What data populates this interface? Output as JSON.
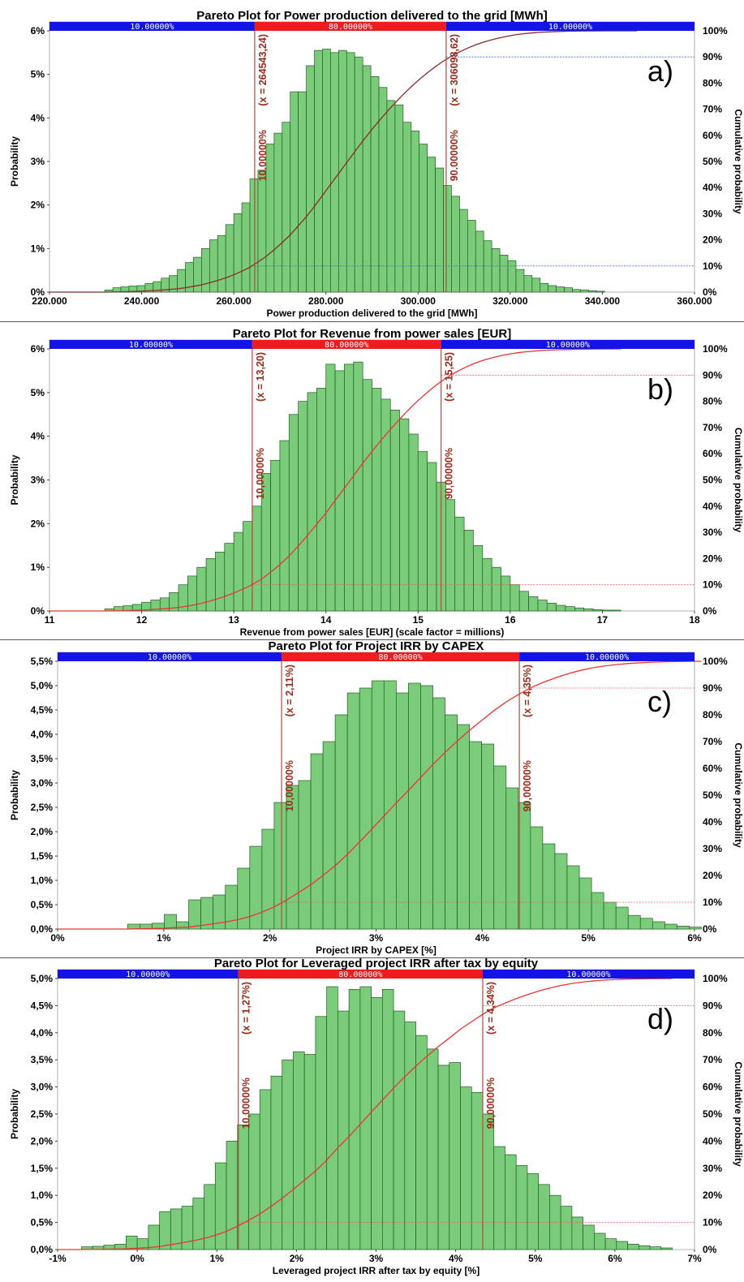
{
  "chart_data": [
    {
      "type": "bar",
      "panel_label": "a)",
      "title": "Pareto Plot for Power production delivered to the grid [MWh]",
      "xlabel": "Power production delivered to the grid [MWh]",
      "ylabel": "Probability",
      "y2label": "Cumulative probability",
      "x_ticks": [
        "220.000",
        "240.000",
        "260.000",
        "280.000",
        "300.000",
        "320.000",
        "340.000",
        "360.000"
      ],
      "y_ticks": [
        "0%",
        "1%",
        "2%",
        "3%",
        "4%",
        "5%",
        "6%"
      ],
      "y2_ticks": [
        "0%",
        "10%",
        "20%",
        "30%",
        "40%",
        "50%",
        "60%",
        "70%",
        "80%",
        "90%",
        "100%"
      ],
      "xlim": [
        220000,
        360000
      ],
      "ylim": [
        0,
        6
      ],
      "bin_start": 232000,
      "bin_width": 1750,
      "values": [
        0.05,
        0.1,
        0.12,
        0.14,
        0.15,
        0.2,
        0.24,
        0.32,
        0.38,
        0.52,
        0.68,
        0.8,
        1.0,
        1.2,
        1.3,
        1.55,
        1.8,
        2.05,
        2.6,
        2.8,
        3.4,
        3.65,
        3.9,
        4.6,
        4.6,
        5.2,
        5.55,
        5.58,
        5.5,
        5.55,
        5.5,
        5.4,
        5.2,
        4.95,
        4.7,
        4.4,
        4.3,
        3.9,
        3.7,
        3.4,
        3.1,
        2.85,
        2.45,
        2.2,
        1.9,
        1.65,
        1.4,
        1.18,
        1.0,
        0.85,
        0.72,
        0.52,
        0.38,
        0.32,
        0.2,
        0.15,
        0.12,
        0.1,
        0.06,
        0.05,
        0.03,
        0.02
      ],
      "bar_color": "#7acc7a",
      "cdf_color": "#8b2a2a",
      "cdf_end": 347500,
      "band_labels": [
        "10.00000%",
        "80.00000%",
        "10.00000%"
      ],
      "band_colors": [
        "#1414e6",
        "#ee1c1c",
        "#1414e6"
      ],
      "percentile_lines": [
        {
          "x": 264543.24,
          "percent_label": "10.00000%",
          "value_label": "(x = 264543,24)"
        },
        {
          "x": 306098.62,
          "percent_label": "90.00000%",
          "value_label": "(x = 306098,62)"
        }
      ],
      "line_color": "#b34a3a",
      "guide_color": "#3b6fd8",
      "guides_at_cdf": [
        0.1,
        0.9
      ]
    },
    {
      "type": "bar",
      "panel_label": "b)",
      "title": "Pareto Plot for Revenue from power sales [EUR]",
      "xlabel": "Revenue from power sales [EUR] (scale factor = millions)",
      "ylabel": "Probability",
      "y2label": "Cumulative probability",
      "x_ticks": [
        "11",
        "12",
        "13",
        "14",
        "15",
        "16",
        "17",
        "18"
      ],
      "y_ticks": [
        "0%",
        "1%",
        "2%",
        "3%",
        "4%",
        "5%",
        "6%"
      ],
      "y2_ticks": [
        "0%",
        "10%",
        "20%",
        "30%",
        "40%",
        "50%",
        "60%",
        "70%",
        "80%",
        "90%",
        "100%"
      ],
      "xlim": [
        11,
        18
      ],
      "ylim": [
        0,
        6
      ],
      "bin_start": 11.6,
      "bin_width": 0.1,
      "values": [
        0.05,
        0.1,
        0.12,
        0.15,
        0.2,
        0.25,
        0.3,
        0.42,
        0.6,
        0.8,
        1.0,
        1.2,
        1.35,
        1.55,
        1.8,
        2.05,
        2.4,
        3.15,
        3.45,
        3.9,
        4.5,
        4.8,
        5.0,
        5.1,
        5.65,
        5.5,
        5.65,
        5.7,
        5.3,
        5.1,
        4.85,
        4.6,
        4.4,
        4.05,
        3.65,
        3.4,
        2.95,
        2.55,
        2.15,
        1.85,
        1.5,
        1.2,
        1.0,
        0.8,
        0.6,
        0.45,
        0.33,
        0.25,
        0.18,
        0.13,
        0.1,
        0.07,
        0.05,
        0.03,
        0.02,
        0.02
      ],
      "bar_color": "#7acc7a",
      "cdf_color": "#ee3333",
      "cdf_end": 17.1,
      "band_labels": [
        "10.00000%",
        "80.00000%",
        "10.00000%"
      ],
      "band_colors": [
        "#1414e6",
        "#ee1c1c",
        "#1414e6"
      ],
      "percentile_lines": [
        {
          "x": 13.2,
          "percent_label": "10,00000%",
          "value_label": "(x = 13,20)"
        },
        {
          "x": 15.25,
          "percent_label": "90,00000%",
          "value_label": "(x = 15,25)"
        }
      ],
      "line_color": "#b34a3a",
      "guide_color": "#e06060",
      "guides_at_cdf": [
        0.1,
        0.9
      ]
    },
    {
      "type": "bar",
      "panel_label": "c)",
      "title": "Pareto Plot for Project IRR by CAPEX",
      "xlabel": "Project IRR by CAPEX [%]",
      "ylabel": "Probability",
      "y2label": "Cumulative probability",
      "x_ticks": [
        "0%",
        "1%",
        "2%",
        "3%",
        "4%",
        "5%",
        "6%"
      ],
      "y_ticks": [
        "0,0%",
        "0,5%",
        "1,0%",
        "1,5%",
        "2,0%",
        "2,5%",
        "3,0%",
        "3,5%",
        "4,0%",
        "4,5%",
        "5,0%",
        "5,5%"
      ],
      "y2_ticks": [
        "0%",
        "10%",
        "20%",
        "30%",
        "40%",
        "50%",
        "60%",
        "70%",
        "80%",
        "90%",
        "100%"
      ],
      "xlim": [
        0,
        6
      ],
      "ylim": [
        0,
        5.5
      ],
      "bin_start": 0.66,
      "bin_width": 0.115,
      "values": [
        0.1,
        0.1,
        0.12,
        0.3,
        0.15,
        0.6,
        0.65,
        0.7,
        0.9,
        1.25,
        1.7,
        2.05,
        2.6,
        2.95,
        3.05,
        3.6,
        3.85,
        4.4,
        4.85,
        4.95,
        5.1,
        5.1,
        4.85,
        5.05,
        5.0,
        4.75,
        4.4,
        4.2,
        3.85,
        3.8,
        3.35,
        2.9,
        2.6,
        2.1,
        1.75,
        1.55,
        1.3,
        1.05,
        0.75,
        0.55,
        0.45,
        0.28,
        0.22,
        0.15,
        0.1,
        0.06,
        0.04
      ],
      "bar_color": "#7acc7a",
      "cdf_color": "#ee3333",
      "cdf_end": 5.95,
      "band_labels": [
        "10.00000%",
        "80.00000%",
        "10.00000%"
      ],
      "band_colors": [
        "#1414e6",
        "#ee1c1c",
        "#1414e6"
      ],
      "percentile_lines": [
        {
          "x": 2.11,
          "percent_label": "10,00000%",
          "value_label": "(x = 2,11%)"
        },
        {
          "x": 4.35,
          "percent_label": "90,00000%",
          "value_label": "(x = 4,35%)"
        }
      ],
      "line_color": "#b34a3a",
      "guide_color": "#e06060",
      "guides_at_cdf": [
        0.1,
        0.9
      ]
    },
    {
      "type": "bar",
      "panel_label": "d)",
      "title": "Pareto Plot for Leveraged project IRR after tax by equity",
      "xlabel": "Leveraged project IRR after tax by equity [%]",
      "ylabel": "Probability",
      "y2label": "Cumulative probability",
      "x_ticks": [
        "-1%",
        "0%",
        "1%",
        "2%",
        "3%",
        "4%",
        "5%",
        "6%",
        "7%"
      ],
      "y_ticks": [
        "0,0%",
        "0,5%",
        "1,0%",
        "1,5%",
        "2,0%",
        "2,5%",
        "3,0%",
        "3,5%",
        "4,0%",
        "4,5%",
        "5,0%"
      ],
      "y2_ticks": [
        "0%",
        "10%",
        "20%",
        "30%",
        "40%",
        "50%",
        "60%",
        "70%",
        "80%",
        "90%",
        "100%"
      ],
      "xlim": [
        -1,
        7
      ],
      "ylim": [
        0,
        5
      ],
      "bin_start": -0.7,
      "bin_width": 0.14,
      "values": [
        0.05,
        0.06,
        0.08,
        0.1,
        0.25,
        0.2,
        0.45,
        0.7,
        0.75,
        0.8,
        0.95,
        1.2,
        1.6,
        2.0,
        2.3,
        2.5,
        2.95,
        3.2,
        3.5,
        3.65,
        3.6,
        4.3,
        4.85,
        4.4,
        4.8,
        4.85,
        4.65,
        4.8,
        4.4,
        4.2,
        3.95,
        3.7,
        3.4,
        3.45,
        3.0,
        2.9,
        2.5,
        1.9,
        1.75,
        1.55,
        1.4,
        1.2,
        1.0,
        0.8,
        0.6,
        0.45,
        0.3,
        0.2,
        0.15,
        0.1,
        0.07,
        0.05,
        0.03
      ],
      "bar_color": "#7acc7a",
      "cdf_color": "#ee3333",
      "cdf_end": 6.6,
      "band_labels": [
        "10.00000%",
        "80.00000%",
        "10.00000%"
      ],
      "band_colors": [
        "#1414e6",
        "#ee1c1c",
        "#1414e6"
      ],
      "percentile_lines": [
        {
          "x": 1.27,
          "percent_label": "10,00000%",
          "value_label": "(x = 1,27%)"
        },
        {
          "x": 4.34,
          "percent_label": "90,00000%",
          "value_label": "(x = 4,34%)"
        }
      ],
      "line_color": "#b34a3a",
      "guide_color": "#e06060",
      "guides_at_cdf": [
        0.1,
        0.9
      ]
    }
  ]
}
